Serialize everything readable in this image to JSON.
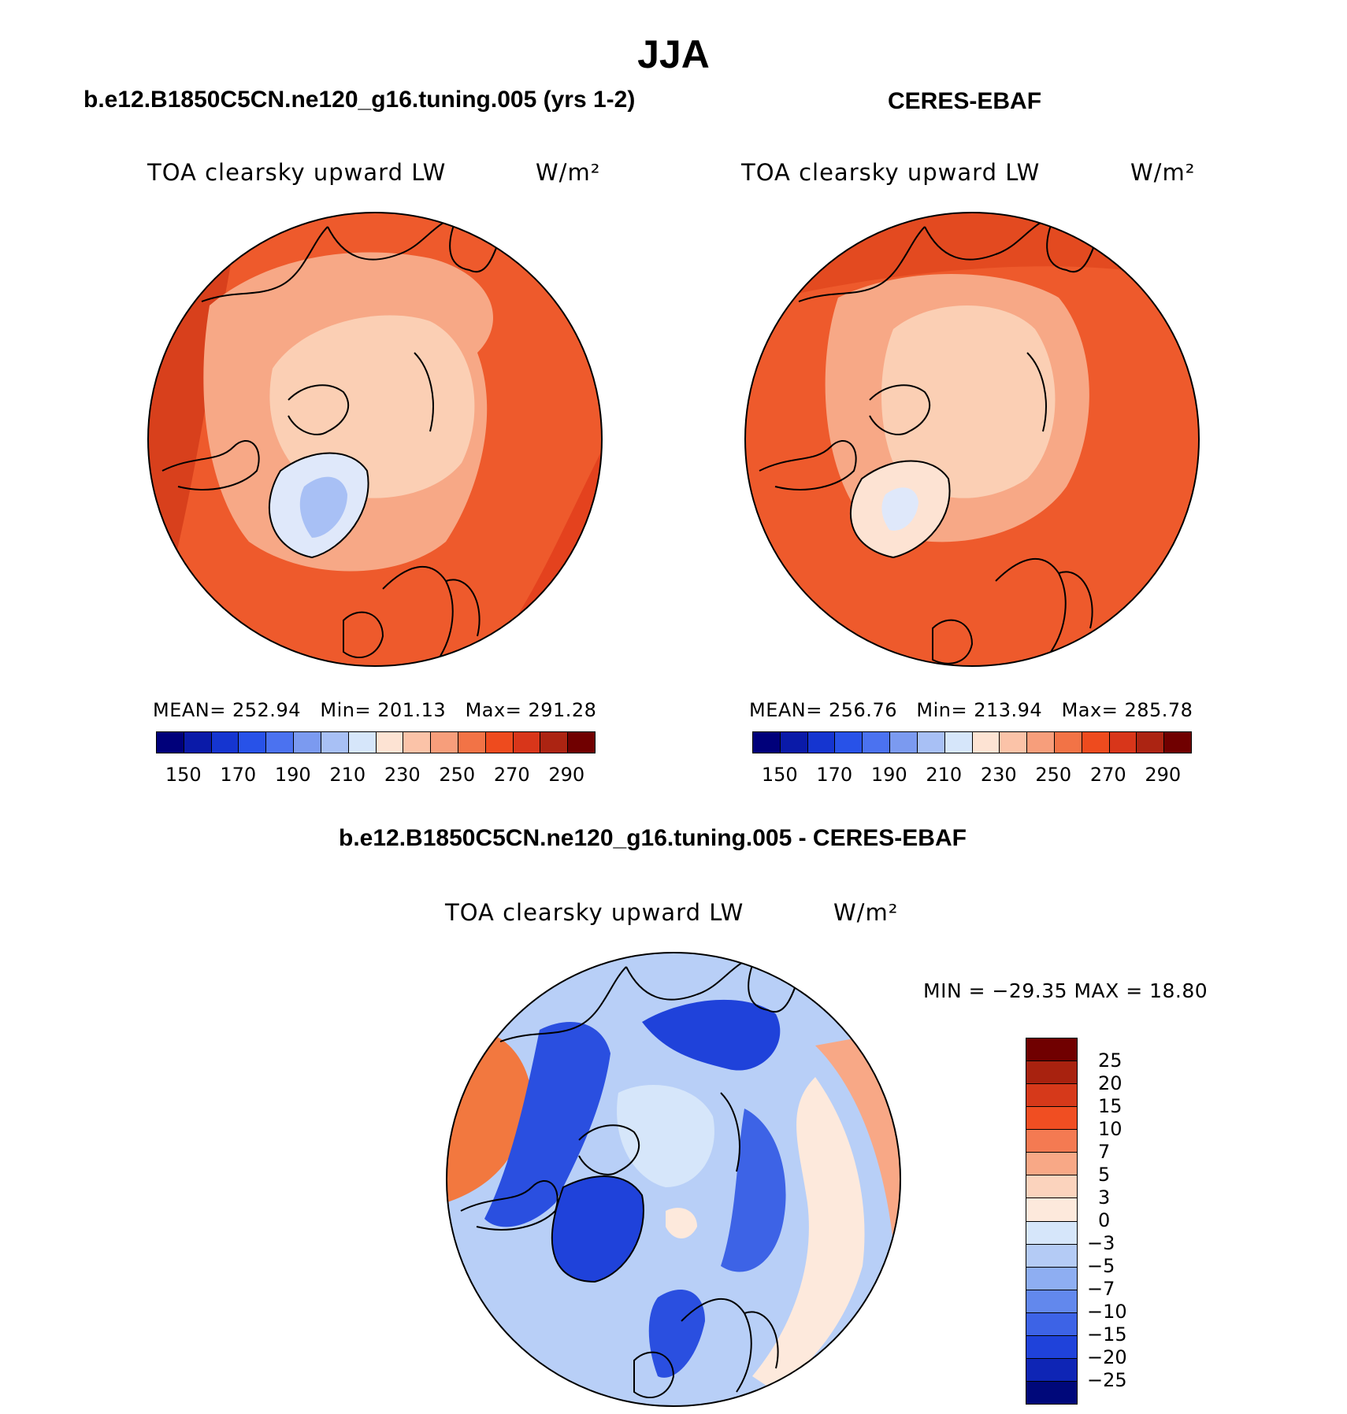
{
  "title": "JJA",
  "panels": {
    "model": {
      "title": "b.e12.B1850C5CN.ne120_g16.tuning.005 (yrs 1-2)",
      "variable": "TOA clearsky upward LW",
      "units": "W/m²",
      "mean_label": "MEAN=",
      "mean": "252.94",
      "min_label": "Min=",
      "min": "201.13",
      "max_label": "Max=",
      "max": "291.28"
    },
    "obs": {
      "title": "CERES-EBAF",
      "variable": "TOA clearsky upward LW",
      "units": "W/m²",
      "mean_label": "MEAN=",
      "mean": "256.76",
      "min_label": "Min=",
      "min": "213.94",
      "max_label": "Max=",
      "max": "285.78"
    },
    "diff": {
      "title": "b.e12.B1850C5CN.ne120_g16.tuning.005 - CERES-EBAF",
      "variable": "TOA clearsky upward LW",
      "units": "W/m²",
      "minmax": "MIN = −29.35 MAX =  18.80"
    }
  },
  "colorbar_abs": {
    "colors": [
      "#00007a",
      "#0a1aa8",
      "#1535d0",
      "#2852e8",
      "#4b72f0",
      "#7b9af0",
      "#a8c0f5",
      "#d6e6fa",
      "#fde3d3",
      "#fbc3a8",
      "#f79e7b",
      "#f27346",
      "#ee4b1e",
      "#d8361a",
      "#ac2412",
      "#700000"
    ],
    "tick_labels": [
      "150",
      "170",
      "190",
      "210",
      "230",
      "250",
      "270",
      "290"
    ]
  },
  "colorbar_diff": {
    "colors": [
      "#700000",
      "#a8220f",
      "#d6391a",
      "#f04e22",
      "#f47a52",
      "#f8a886",
      "#fbd3bd",
      "#fde9dc",
      "#d6e6fa",
      "#b4cbf5",
      "#8eaef2",
      "#6288ed",
      "#3d63e6",
      "#1f42da",
      "#0e25b5",
      "#00087a"
    ],
    "tick_labels": [
      "25",
      "20",
      "15",
      "10",
      "7",
      "5",
      "3",
      "0",
      "−3",
      "−5",
      "−7",
      "−10",
      "−15",
      "−20",
      "−25"
    ]
  },
  "regions": {
    "ocean": "#ee5a2c",
    "ocean_warm": "#e4421e",
    "arctic": "#f9c6a9",
    "greenland": "#dfe8fa",
    "diff_ocean": "#b8cff7",
    "diff_cold": "#2a4fe0",
    "diff_warm": "#f2783f"
  }
}
